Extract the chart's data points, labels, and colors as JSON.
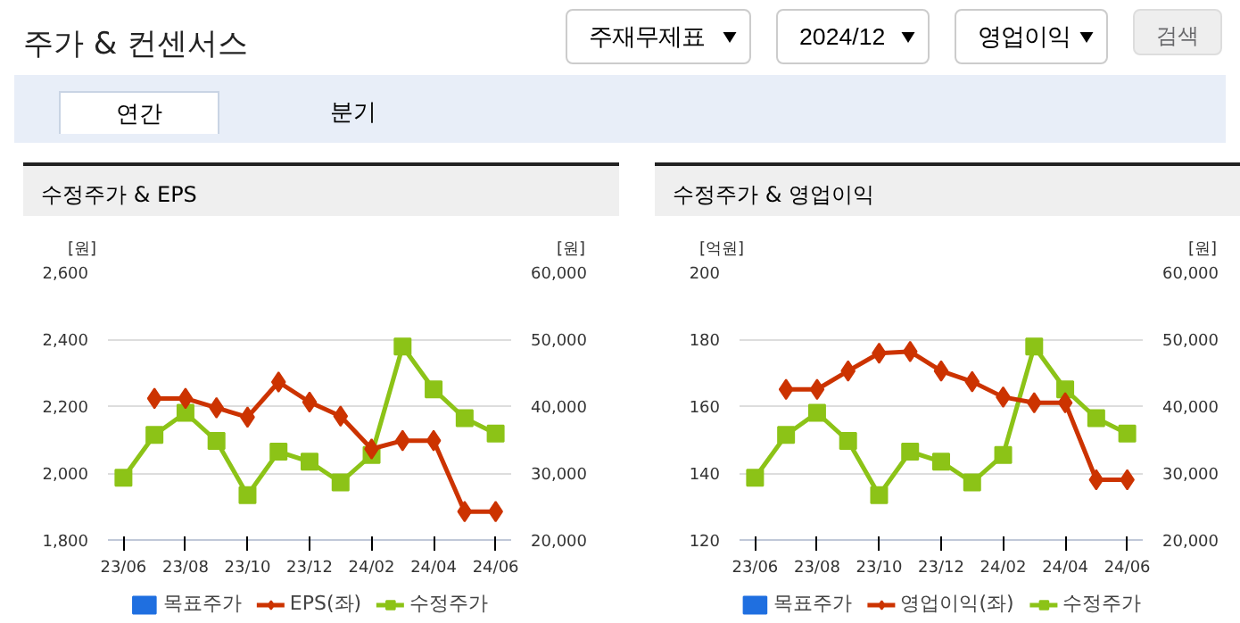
{
  "chart_data": [
    {
      "type": "other",
      "title": "주가 & 컨센서스",
      "annotations": [
        "주재무제표",
        "2024/12",
        "영업이익",
        "검색",
        "연간",
        "분기"
      ]
    },
    {
      "type": "line",
      "title": "수정주가 & EPS",
      "ylabel": "[원]",
      "y2label": "[원]",
      "categories": [
        "23/06",
        null,
        "23/08",
        null,
        "23/10",
        null,
        "23/12",
        null,
        "24/02",
        null,
        "24/04",
        null,
        "24/06"
      ],
      "series": [
        {
          "name": "목표주가",
          "type": "bar",
          "color": "#1f6fe0",
          "values": [
            null,
            null,
            null,
            null,
            null,
            null,
            null,
            null,
            null,
            null,
            null,
            null,
            null
          ]
        },
        {
          "name": "EPS(좌)",
          "type": "line",
          "marker": "diamond",
          "color": "#cc3300",
          "values": [
            null,
            2223,
            2223,
            2195,
            2167,
            2272,
            2212,
            2170,
            2072,
            2097,
            2097,
            1885,
            1885
          ]
        },
        {
          "name": "수정주가",
          "type": "line",
          "marker": "square",
          "axis": "y2",
          "color": "#8cc317",
          "values": [
            29300,
            35700,
            39000,
            34800,
            26700,
            33200,
            31700,
            28600,
            32700,
            48900,
            42500,
            38200,
            35900
          ]
        }
      ],
      "ylim": [
        1800,
        2600
      ],
      "yticks": [
        {
          "value": 1800,
          "label": "1,800"
        },
        {
          "value": 2000,
          "label": "2,000"
        },
        {
          "value": 2200,
          "label": "2,200"
        },
        {
          "value": 2400,
          "label": "2,400"
        },
        {
          "value": 2600,
          "label": "2,600"
        }
      ],
      "y2lim": [
        20000,
        60000
      ],
      "y2ticks": [
        {
          "value": 20000,
          "label": "20,000"
        },
        {
          "value": 30000,
          "label": "30,000"
        },
        {
          "value": 40000,
          "label": "40,000"
        },
        {
          "value": 50000,
          "label": "50,000"
        },
        {
          "value": 60000,
          "label": "60,000"
        }
      ],
      "grid": "y",
      "legend": "bottom"
    },
    {
      "type": "line",
      "title": "수정주가 & 영업이익",
      "ylabel": "[억원]",
      "y2label": "[원]",
      "categories": [
        "23/06",
        null,
        "23/08",
        null,
        "23/10",
        null,
        "23/12",
        null,
        "24/02",
        null,
        "24/04",
        null,
        "24/06"
      ],
      "series": [
        {
          "name": "목표주가",
          "type": "bar",
          "color": "#1f6fe0",
          "values": [
            null,
            null,
            null,
            null,
            null,
            null,
            null,
            null,
            null,
            null,
            null,
            null,
            null
          ]
        },
        {
          "name": "영업이익(좌)",
          "type": "line",
          "marker": "diamond",
          "color": "#cc3300",
          "values": [
            null,
            165,
            165,
            170.5,
            175.8,
            176.3,
            170.5,
            167.3,
            162.7,
            161,
            161,
            138,
            138
          ]
        },
        {
          "name": "수정주가",
          "type": "line",
          "marker": "square",
          "axis": "y2",
          "color": "#8cc317",
          "values": [
            29300,
            35700,
            39000,
            34800,
            26700,
            33200,
            31700,
            28600,
            32700,
            48900,
            42500,
            38200,
            35900
          ]
        }
      ],
      "ylim": [
        120,
        200
      ],
      "yticks": [
        120,
        140,
        160,
        180,
        200
      ],
      "y2lim": [
        20000,
        60000
      ],
      "y2ticks": [
        {
          "value": 20000,
          "label": "20,000"
        },
        {
          "value": 30000,
          "label": "30,000"
        },
        {
          "value": 40000,
          "label": "40,000"
        },
        {
          "value": 50000,
          "label": "50,000"
        },
        {
          "value": 60000,
          "label": "60,000"
        }
      ],
      "grid": "y",
      "legend": "bottom"
    }
  ]
}
